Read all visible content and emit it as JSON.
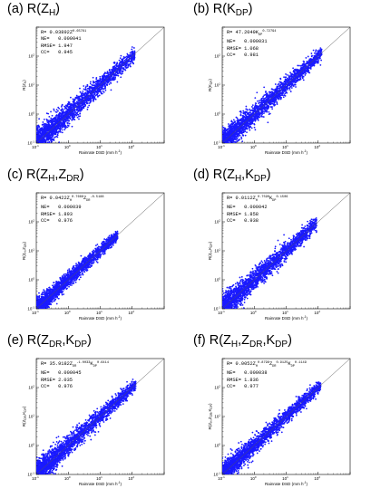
{
  "chart_data": [
    {
      "type": "scatter",
      "panel_label": "(a)",
      "title_base": "R(Z",
      "title_subs": [
        [
          "H",
          ")"
        ]
      ],
      "equation": {
        "lhs": "R=",
        "coef": "0.03892",
        "base": "Z",
        "base_sub": "",
        "exp": "0.65761",
        "extra": []
      },
      "stats": {
        "NE": "0.000041",
        "RMSE": "1.947",
        "CC": "0.945"
      },
      "xlabel": "Rainrate DSD (mm h",
      "xlabel_sup": "-1",
      "ylabel": "R(Z",
      "xlim": [
        0.1,
        1000
      ],
      "ylim": [
        0.1,
        1000
      ],
      "log": true,
      "x_ticks": [
        "10",
        "10",
        "10",
        "10"
      ],
      "x_tick_exps": [
        "-1",
        "0",
        "1",
        "2"
      ],
      "y_ticks": [
        "10",
        "10",
        "10",
        "10"
      ],
      "y_tick_exps": [
        "-1",
        "0",
        "1",
        "2"
      ],
      "point_color": "#1a1aff",
      "spread": 0.22,
      "upper": 120,
      "n": 2600
    },
    {
      "type": "scatter",
      "panel_label": "(b)",
      "title_base": "R(K",
      "title_subs": [
        [
          "DP",
          ")"
        ]
      ],
      "equation": {
        "lhs": "R=",
        "coef": "47.2049K",
        "base": "",
        "base_sub": "DP",
        "exp": "0.72794",
        "extra": []
      },
      "stats": {
        "NE": "0.000031",
        "RMSE": "1.068",
        "CC": "0.981"
      },
      "xlabel": "Rainrate DSD (mm h",
      "xlabel_sup": "-1",
      "ylabel": "R(K",
      "xlim": [
        0.1,
        1000
      ],
      "ylim": [
        0.1,
        1000
      ],
      "log": true,
      "x_ticks": [
        "10",
        "10",
        "10",
        "10"
      ],
      "x_tick_exps": [
        "-1",
        "0",
        "1",
        "2"
      ],
      "y_ticks": [
        "10",
        "10",
        "10",
        "10"
      ],
      "y_tick_exps": [
        "-1",
        "0",
        "1",
        "2"
      ],
      "point_color": "#1a1aff",
      "spread": 0.2,
      "upper": 130,
      "n": 2600
    },
    {
      "type": "scatter",
      "panel_label": "(c)",
      "title_base": "R(Z",
      "title_subs": [
        [
          "H",
          ",Z"
        ],
        [
          "DR",
          ")"
        ]
      ],
      "equation": {
        "lhs": "",
        "coef": "0.0422",
        "base": "Z",
        "base_sub": "H",
        "exp": "0.7666",
        "extra": [
          "Z",
          "DR",
          "-0.5188"
        ]
      },
      "stats": {
        "NE": "0.000039",
        "RMSE": "1.893",
        "CC": "0.976"
      },
      "xlabel": "Rainrate DSD (mm h",
      "xlabel_sup": "-1",
      "ylabel": "R(Z",
      "xlim": [
        0.1,
        1000
      ],
      "ylim": [
        0.1,
        1000
      ],
      "log": true,
      "x_ticks": [
        "10",
        "10",
        "10",
        "10"
      ],
      "x_tick_exps": [
        "-1",
        "0",
        "1",
        "2"
      ],
      "y_ticks": [
        "10",
        "10",
        "10",
        "10"
      ],
      "y_tick_exps": [
        "-1",
        "0",
        "1",
        "2"
      ],
      "point_color": "#1a1aff",
      "spread": 0.15,
      "upper": 35,
      "n": 2600
    },
    {
      "type": "scatter",
      "panel_label": "(d)",
      "title_base": "R(Z",
      "title_subs": [
        [
          "H",
          ",K"
        ],
        [
          "DP",
          ")"
        ]
      ],
      "equation": {
        "lhs": "",
        "coef": "0.0112",
        "base": "Z",
        "base_sub": "H",
        "exp": "0.7590",
        "extra": [
          "K",
          "DP",
          "0.1506"
        ]
      },
      "stats": {
        "NE": "0.000042",
        "RMSE": "1.858",
        "CC": "0.938"
      },
      "xlabel": "Rainrate DSD (mm h",
      "xlabel_sup": "-1",
      "ylabel": "R(Z",
      "xlim": [
        0.1,
        1000
      ],
      "ylim": [
        0.1,
        1000
      ],
      "log": true,
      "x_ticks": [
        "10",
        "10",
        "10",
        "10"
      ],
      "x_tick_exps": [
        "-1",
        "0",
        "1",
        "2"
      ],
      "y_ticks": [
        "10",
        "10",
        "10",
        "10"
      ],
      "y_tick_exps": [
        "-1",
        "0",
        "1",
        "2"
      ],
      "point_color": "#1a1aff",
      "spread": 0.22,
      "upper": 90,
      "n": 2600
    },
    {
      "type": "scatter",
      "panel_label": "(e)",
      "title_base": "R(Z",
      "title_subs": [
        [
          "DR",
          ",K"
        ],
        [
          "DP",
          ")"
        ]
      ],
      "equation": {
        "lhs": "R=",
        "coef": "35.9182Z",
        "base": "",
        "base_sub": "DR",
        "exp": "-1.0033",
        "extra": [
          "K",
          "DP",
          "0.6414"
        ]
      },
      "stats": {
        "NE": "0.000045",
        "RMSE": "2.035",
        "CC": "0.976"
      },
      "xlabel": "Rainrate DSD (mm h",
      "xlabel_sup": "-1",
      "ylabel": "R(Z",
      "xlim": [
        0.1,
        1000
      ],
      "ylim": [
        0.1,
        1000
      ],
      "log": true,
      "x_ticks": [
        "10",
        "10",
        "10",
        "10"
      ],
      "x_tick_exps": [
        "-1",
        "0",
        "1",
        "2"
      ],
      "y_ticks": [
        "10",
        "10",
        "10",
        "10"
      ],
      "y_tick_exps": [
        "-1",
        "0",
        "1",
        "2"
      ],
      "point_color": "#1a1aff",
      "spread": 0.2,
      "upper": 130,
      "n": 2600
    },
    {
      "type": "scatter",
      "panel_label": "(f)",
      "title_base": "R(Z",
      "title_subs": [
        [
          "H",
          ",Z"
        ],
        [
          "DR",
          ",K"
        ],
        [
          "DP",
          ")"
        ]
      ],
      "equation": {
        "lhs": "R=",
        "coef": "0.0052",
        "base": "Z",
        "base_sub": "H",
        "exp": "0.8798",
        "extra": [
          "Z",
          "DR",
          "0.9125",
          "K",
          "DP",
          "0.1149"
        ]
      },
      "stats": {
        "NE": "0.000038",
        "RMSE": "1.836",
        "CC": "0.977"
      },
      "xlabel": "Rainrate DSD (mm h",
      "xlabel_sup": "-1",
      "ylabel": "R(Z",
      "xlim": [
        0.1,
        1000
      ],
      "ylim": [
        0.1,
        1000
      ],
      "log": true,
      "x_ticks": [
        "10",
        "10",
        "10",
        "10"
      ],
      "x_tick_exps": [
        "-1",
        "0",
        "1",
        "2"
      ],
      "y_ticks": [
        "10",
        "10",
        "10",
        "10"
      ],
      "y_tick_exps": [
        "-1",
        "0",
        "1",
        "2"
      ],
      "point_color": "#1a1aff",
      "spread": 0.18,
      "upper": 120,
      "n": 2600
    }
  ]
}
